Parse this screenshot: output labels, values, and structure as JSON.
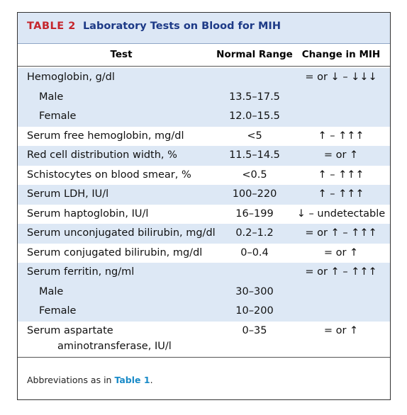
{
  "table": {
    "label": "TABLE 2",
    "title": "Laboratory Tests on Blood for MIH",
    "header": [
      "Test",
      "Normal Range",
      "Change in MIH"
    ],
    "rows": [
      {
        "test": "Hemoglobin, g/dl",
        "change": "= or ↓ – ↓↓↓",
        "sub": [
          {
            "test": "Male",
            "range": "13.5–17.5"
          },
          {
            "test": "Female",
            "range": "12.0–15.5"
          }
        ]
      },
      {
        "test": "Serum free hemoglobin, mg/dl",
        "range": "<5",
        "change": "↑ – ↑↑↑"
      },
      {
        "test": "Red cell distribution width, %",
        "range": "11.5–14.5",
        "change": "= or ↑"
      },
      {
        "test": "Schistocytes on blood smear, %",
        "range": "<0.5",
        "change": "↑ – ↑↑↑"
      },
      {
        "test": "Serum LDH, IU/l",
        "range": "100–220",
        "change": "↑ – ↑↑↑"
      },
      {
        "test": "Serum haptoglobin, IU/l",
        "range": "16–199",
        "change": "↓ – undetectable"
      },
      {
        "test": "Serum unconjugated bilirubin, mg/dl",
        "range": "0.2–1.2",
        "change": "= or ↑ – ↑↑↑"
      },
      {
        "test": "Serum conjugated bilirubin, mg/dl",
        "range": "0–0.4",
        "change": "= or ↑"
      },
      {
        "test": "Serum ferritin, ng/ml",
        "change": "= or ↑ – ↑↑↑",
        "sub": [
          {
            "test": "Male",
            "range": "30–300"
          },
          {
            "test": "Female",
            "range": "10–200"
          }
        ]
      },
      {
        "test": [
          "Serum aspartate",
          "aminotransferase, IU/l"
        ],
        "range": "0–35",
        "change": "= or ↑"
      }
    ],
    "footnote": [
      "Abbreviations as in ",
      "Table 1",
      "."
    ]
  }
}
